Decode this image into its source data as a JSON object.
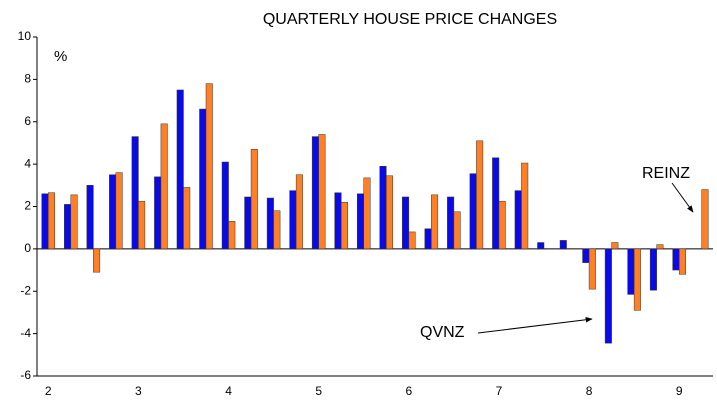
{
  "chart_data": {
    "type": "bar",
    "title": "QUARTERLY HOUSE PRICE CHANGES",
    "y_label": "%",
    "categories": [
      "2",
      null,
      null,
      null,
      "3",
      null,
      null,
      null,
      "4",
      null,
      null,
      null,
      "5",
      null,
      null,
      null,
      "6",
      null,
      null,
      null,
      "7",
      null,
      null,
      null,
      "8",
      null,
      null,
      null,
      "9",
      null
    ],
    "series": [
      {
        "name": "QVNZ",
        "color": "#0a0ae6",
        "values": [
          2.6,
          2.1,
          3.0,
          3.5,
          5.3,
          3.4,
          7.5,
          6.6,
          4.1,
          2.45,
          2.4,
          2.75,
          5.3,
          2.65,
          2.6,
          3.9,
          2.45,
          0.95,
          2.45,
          3.55,
          4.3,
          2.75,
          0.3,
          0.4,
          -0.65,
          -4.45,
          -2.15,
          -1.95,
          -1.0,
          null
        ]
      },
      {
        "name": "REINZ",
        "color": "#ff7f27",
        "values": [
          2.65,
          2.55,
          -1.1,
          3.6,
          2.25,
          5.9,
          2.9,
          7.8,
          1.3,
          4.7,
          1.8,
          3.5,
          5.4,
          2.2,
          3.35,
          3.45,
          0.8,
          2.55,
          1.75,
          5.1,
          2.25,
          4.05,
          null,
          null,
          -1.9,
          0.3,
          -2.9,
          0.2,
          -1.2,
          2.8
        ]
      }
    ],
    "ylim": [
      -6,
      10
    ],
    "yticks": [
      10,
      8,
      6,
      4,
      2,
      0,
      -2,
      -4,
      -6
    ]
  }
}
